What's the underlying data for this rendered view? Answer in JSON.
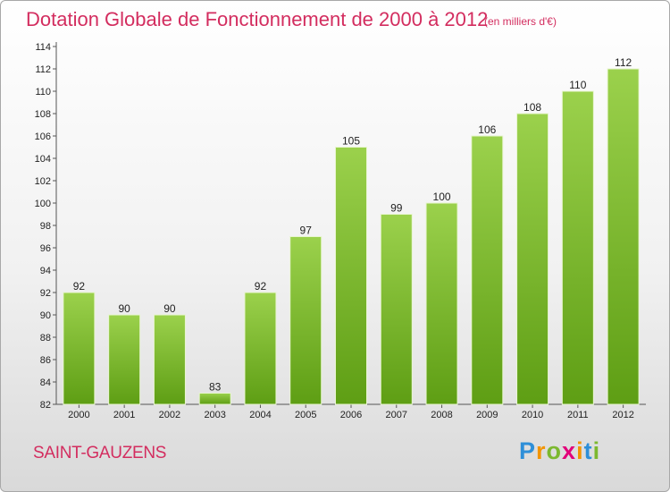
{
  "header": {
    "title": "Dotation Globale de Fonctionnement de 2000 à 2012",
    "unit": "(en milliers d'€)"
  },
  "footer": {
    "commune": "SAINT-GAUZENS",
    "logo_letters": [
      "P",
      "r",
      "o",
      "x",
      "i",
      "t",
      "i"
    ],
    "logo_colors": [
      "#2e8fd8",
      "#f29400",
      "#7cb82f",
      "#e2007a",
      "#f29400",
      "#2e8fd8",
      "#7cb82f"
    ]
  },
  "chart_data": {
    "type": "bar",
    "title": "Dotation Globale de Fonctionnement de 2000 à 2012",
    "subtitle": "(en milliers d'€)",
    "categories": [
      "2000",
      "2001",
      "2002",
      "2003",
      "2004",
      "2005",
      "2006",
      "2007",
      "2008",
      "2009",
      "2010",
      "2011",
      "2012"
    ],
    "values": [
      92,
      90,
      90,
      83,
      92,
      97,
      105,
      99,
      100,
      106,
      108,
      110,
      112
    ],
    "ylim": [
      82,
      114
    ],
    "yticks": [
      82,
      84,
      86,
      88,
      90,
      92,
      94,
      96,
      98,
      100,
      102,
      104,
      106,
      108,
      110,
      112,
      114
    ],
    "grid": false,
    "data_labels": true,
    "bar_color": "#8cc63e"
  }
}
